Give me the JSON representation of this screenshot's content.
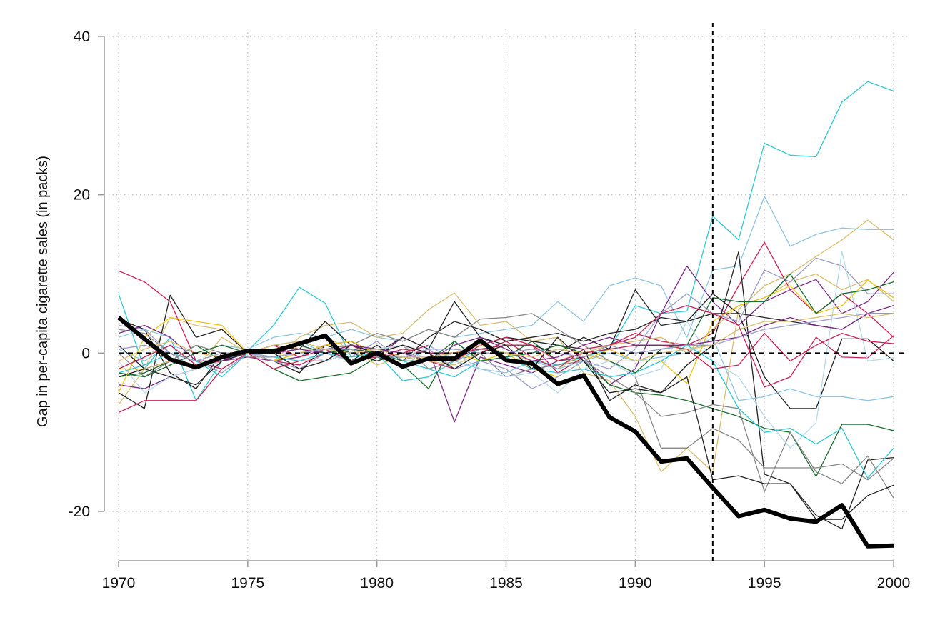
{
  "chart_data": {
    "type": "line",
    "title": "",
    "xlabel": "",
    "ylabel": "Gap in per-capita cigarette sales (in packs)",
    "xlim": [
      1970,
      2000
    ],
    "ylim": [
      -26,
      40
    ],
    "xticks": [
      1970,
      1975,
      1980,
      1985,
      1990,
      1995,
      2000
    ],
    "yticks": [
      -20,
      0,
      20,
      40
    ],
    "grid": "dotted",
    "legend": "none",
    "reference_lines": {
      "y": 0,
      "x": 1993
    },
    "x": [
      1970,
      1971,
      1972,
      1973,
      1974,
      1975,
      1976,
      1977,
      1978,
      1979,
      1980,
      1981,
      1982,
      1983,
      1984,
      1985,
      1986,
      1987,
      1988,
      1989,
      1990,
      1991,
      1992,
      1993,
      1994,
      1995,
      1996,
      1997,
      1998,
      1999,
      2000
    ],
    "highlight": {
      "color": "#000000",
      "values": [
        4.5,
        1.8,
        -0.8,
        -1.8,
        -0.5,
        0.3,
        0.2,
        1.2,
        2.2,
        -1.3,
        0,
        -1.7,
        -0.7,
        -0.7,
        1.6,
        -0.9,
        -1.3,
        -3.9,
        -2.8,
        -8.1,
        -9.9,
        -13.7,
        -13.3,
        -17,
        -20.6,
        -19.8,
        -20.9,
        -21.3,
        -19.2,
        -24.4,
        -24.3
      ]
    },
    "donor_series": [
      {
        "color": "#2fc8d0",
        "values": [
          7.5,
          -2,
          2,
          -6,
          -1,
          0.3,
          3.5,
          8.3,
          6.3,
          -0.5,
          0,
          -3.5,
          -3,
          -1,
          0.5,
          0,
          -1,
          -1.5,
          -0.5,
          0.5,
          6,
          5,
          5.3,
          17.3,
          14.3,
          26.5,
          25,
          24.8,
          31.7,
          34.3,
          33.1
        ]
      },
      {
        "color": "#8fc6e1",
        "values": [
          0.5,
          -1,
          1,
          0,
          1,
          0.5,
          2,
          2.5,
          2,
          3,
          2,
          1.5,
          3,
          2,
          2.5,
          3,
          3.5,
          6.5,
          4,
          8.5,
          9.5,
          8.5,
          2,
          10.5,
          11,
          19.8,
          13.5,
          15,
          15.8,
          15.6,
          15.6
        ]
      },
      {
        "color": "#d9be72",
        "values": [
          -6.5,
          -2,
          4.5,
          3.5,
          3,
          0,
          -1,
          2,
          3.5,
          3.9,
          2,
          2.5,
          5.5,
          7.6,
          3.5,
          4,
          1.5,
          2,
          -2.5,
          -3.5,
          -8,
          -15,
          -12,
          -15,
          5.5,
          8.5,
          10,
          12.2,
          14.3,
          16.8,
          14.3
        ]
      },
      {
        "color": "#cc2055",
        "values": [
          10.4,
          9,
          6.5,
          -1,
          -2,
          0,
          -1,
          -1.5,
          0,
          1,
          0,
          1,
          -1,
          -2,
          0,
          1.5,
          -0.5,
          -2,
          0.5,
          1,
          2.5,
          1.5,
          1,
          2.5,
          8.5,
          14,
          8,
          5,
          7.5,
          5,
          2
        ]
      },
      {
        "color": "#7a2a86",
        "values": [
          -4,
          -4.5,
          -3,
          -2,
          -1,
          -0.5,
          -1,
          -0.5,
          1,
          1.5,
          -0.5,
          2,
          0.5,
          -8.7,
          -0.5,
          -1.5,
          -2.5,
          -1,
          -0.5,
          -4,
          -2,
          5,
          11,
          6.5,
          3.5,
          6.5,
          8,
          9.3,
          5,
          6.5,
          10.2
        ]
      },
      {
        "color": "#1a6e2e",
        "values": [
          -3,
          -2.5,
          -1,
          1,
          -1,
          0,
          -2,
          -3.5,
          -3,
          -2.5,
          -0.5,
          -1.5,
          -4.5,
          1.5,
          -1,
          -0.5,
          1.5,
          -1,
          -1,
          -4,
          -5,
          -5.3,
          -6,
          -7,
          -8,
          -9.5,
          -10,
          -15.6,
          -9,
          -9,
          -9.8
        ]
      },
      {
        "color": "#222222",
        "values": [
          4.3,
          3,
          -2.5,
          -4.5,
          0,
          0,
          1,
          0.5,
          4,
          1,
          0,
          2,
          0.5,
          6.5,
          2,
          1,
          1,
          0,
          2,
          0.5,
          8,
          3.5,
          4,
          7.5,
          5,
          -3,
          -7,
          -7,
          1.8,
          1.8,
          -1
        ]
      },
      {
        "color": "#222222",
        "values": [
          -5,
          -7,
          7.3,
          2,
          3,
          0,
          -1,
          -2.5,
          1,
          0,
          -1,
          0,
          -1,
          0,
          1,
          2,
          1.5,
          1,
          0.5,
          -6,
          -4,
          -5,
          -1.5,
          1,
          12.8,
          -15.3,
          -16.5,
          -20.5,
          -22.2,
          -13.5,
          -13.2
        ]
      },
      {
        "color": "#222222",
        "values": [
          -3,
          -2,
          -1,
          -2,
          -1,
          0,
          0.5,
          1,
          0,
          -1,
          1,
          -1,
          2,
          4,
          3,
          1.5,
          2,
          2.5,
          1.5,
          2.5,
          3,
          4.5,
          4,
          5,
          5,
          4.5,
          4,
          3.5,
          3,
          5,
          5
        ]
      },
      {
        "color": "#888888",
        "values": [
          3,
          2.5,
          0,
          -2,
          -1,
          0,
          -1,
          0,
          -1,
          0,
          0.5,
          1,
          -2,
          -1,
          0,
          -3,
          -2,
          -1.5,
          -1,
          -3,
          -5,
          -8,
          -7.5,
          -6.5,
          -7,
          -17.5,
          -10,
          -15,
          -16.5,
          -13,
          -18.3
        ]
      },
      {
        "color": "#888888",
        "values": [
          0,
          -3,
          -1,
          1,
          0,
          -0.5,
          -0.5,
          0,
          0.5,
          1,
          2.5,
          1.5,
          3,
          2,
          4.3,
          4.5,
          5,
          3,
          1,
          -1,
          -3,
          -12,
          -12,
          -9.5,
          -11,
          -14.5,
          -14.5,
          -14.5,
          -14,
          -16,
          -13.3
        ]
      },
      {
        "color": "#d9be72",
        "values": [
          -2,
          -2,
          -1,
          -2,
          2,
          0,
          -1,
          1,
          2,
          0.5,
          -1.5,
          -0.5,
          -1,
          -1.5,
          0,
          0,
          -1,
          -2,
          0,
          1,
          1.5,
          2,
          0,
          3,
          6,
          7,
          9,
          10,
          8,
          9.3,
          6.5
        ]
      },
      {
        "color": "#f0c419",
        "values": [
          -5,
          2,
          4.5,
          4,
          3.5,
          0,
          -1,
          0,
          1,
          1.5,
          0,
          1,
          -1,
          0,
          -1,
          0,
          -2,
          -3,
          -1,
          0.5,
          -1,
          -1,
          -3.8,
          4,
          6,
          7,
          8.5,
          5,
          6,
          9.2,
          7
        ]
      },
      {
        "color": "#9b9fc9",
        "values": [
          3.5,
          3,
          0,
          -1,
          -2.5,
          0,
          -1,
          -2,
          0,
          -0.5,
          1.5,
          -1,
          0.5,
          -2,
          -1,
          -2,
          -4.5,
          -3,
          -1,
          -2,
          0.5,
          5,
          7.5,
          5,
          4,
          10.5,
          9,
          12,
          11,
          7.5,
          7.5
        ]
      },
      {
        "color": "#cc2055",
        "values": [
          -7.5,
          -6,
          -6,
          -6,
          -2,
          0,
          -2,
          -1,
          -1,
          1,
          -0.5,
          0,
          1,
          -1,
          1,
          2,
          1,
          -2.5,
          -0.5,
          1,
          2,
          5,
          6,
          5,
          3.5,
          -4.3,
          -3,
          2,
          -0.5,
          -0.6,
          2.2
        ]
      },
      {
        "color": "#b7d8ea",
        "values": [
          -1,
          -5,
          -3,
          -2,
          -1,
          0,
          -0.5,
          0,
          -1,
          0,
          0.5,
          1,
          -1,
          0,
          -2,
          -3,
          -2.5,
          -5,
          -2,
          -1,
          -3,
          -2,
          4,
          -1,
          -3,
          -8,
          -12,
          -8.8,
          12.8,
          -1,
          -0.6
        ]
      },
      {
        "color": "#8fc6e1",
        "values": [
          2,
          3,
          2,
          -1,
          0,
          0,
          1,
          1.5,
          0,
          -1,
          0,
          -2,
          1,
          -1,
          -2,
          -2.5,
          -1,
          -2,
          -1,
          0,
          -1,
          -0.5,
          0,
          2,
          -6,
          -5.5,
          -4.5,
          -5.5,
          -5.5,
          -6,
          -5.5
        ]
      },
      {
        "color": "#2fc8d0",
        "values": [
          -2.5,
          -1.5,
          0,
          -1,
          -3,
          0,
          -0.5,
          -1,
          0,
          -0.5,
          0,
          -1,
          -2,
          -3,
          -1,
          -0.5,
          -2,
          -2.5,
          -2,
          -3,
          -2.5,
          -1,
          1,
          -1,
          -7,
          -10,
          -9.5,
          -11.5,
          -9.5,
          -15.8,
          -12
        ]
      },
      {
        "color": "#cc2055",
        "values": [
          -2,
          -0.5,
          1,
          -1.5,
          -1,
          0,
          1,
          -0.5,
          0.5,
          -1,
          -0.5,
          0.5,
          0,
          0,
          0.5,
          1,
          1,
          -1,
          0,
          0.5,
          1,
          1,
          0.5,
          -2,
          -1.5,
          2.5,
          -1,
          1,
          2.5,
          1.5,
          1.2
        ]
      },
      {
        "color": "#1a6e2e",
        "values": [
          -2.5,
          -3,
          -1.5,
          0,
          1,
          0,
          0.5,
          1,
          0,
          0.5,
          0,
          -1,
          -1,
          1.5,
          -1,
          -0.5,
          0,
          1,
          0,
          -1,
          -2.5,
          0.5,
          1,
          7,
          6.5,
          6.5,
          10,
          5,
          7.5,
          8,
          9
        ]
      },
      {
        "color": "#222222",
        "values": [
          1,
          -2,
          -3,
          -4,
          -1,
          0,
          0,
          -2,
          -1,
          1,
          0,
          1,
          0,
          -2,
          0,
          1,
          -2,
          2,
          -1,
          -5,
          -4.5,
          -5,
          -3,
          -16,
          -15.5,
          -16.5,
          -16.5,
          -21,
          -21,
          -18,
          -16.7
        ]
      },
      {
        "color": "#7a2a86",
        "values": [
          2.5,
          3.5,
          2,
          -1,
          -1,
          0.5,
          0,
          0.5,
          0,
          1,
          0.5,
          0,
          -1,
          1,
          2,
          0.5,
          -1,
          -0.5,
          1,
          2,
          1,
          1,
          1,
          1.5,
          2,
          3.5,
          4.5,
          3.5,
          3,
          5,
          6
        ]
      },
      {
        "color": "#9b9fc9",
        "values": [
          0.5,
          1,
          0,
          -1,
          0,
          0,
          -0.5,
          0,
          0.5,
          0.5,
          -0.5,
          -0.5,
          0.5,
          0.5,
          0,
          0,
          0.5,
          0,
          -0.5,
          1,
          0,
          0.5,
          1,
          1,
          2,
          3,
          3.5,
          4,
          4.5,
          5,
          5
        ]
      },
      {
        "color": "#d9be72",
        "values": [
          -1,
          0.5,
          1.5,
          0,
          -0.5,
          0,
          1,
          1.5,
          0.5,
          0,
          0.5,
          -0.5,
          -0.5,
          0,
          1,
          0,
          -0.5,
          0.5,
          0,
          -1,
          -1,
          0,
          0.5,
          1,
          3,
          4,
          4,
          4.5,
          5,
          4.5,
          5
        ]
      }
    ]
  }
}
